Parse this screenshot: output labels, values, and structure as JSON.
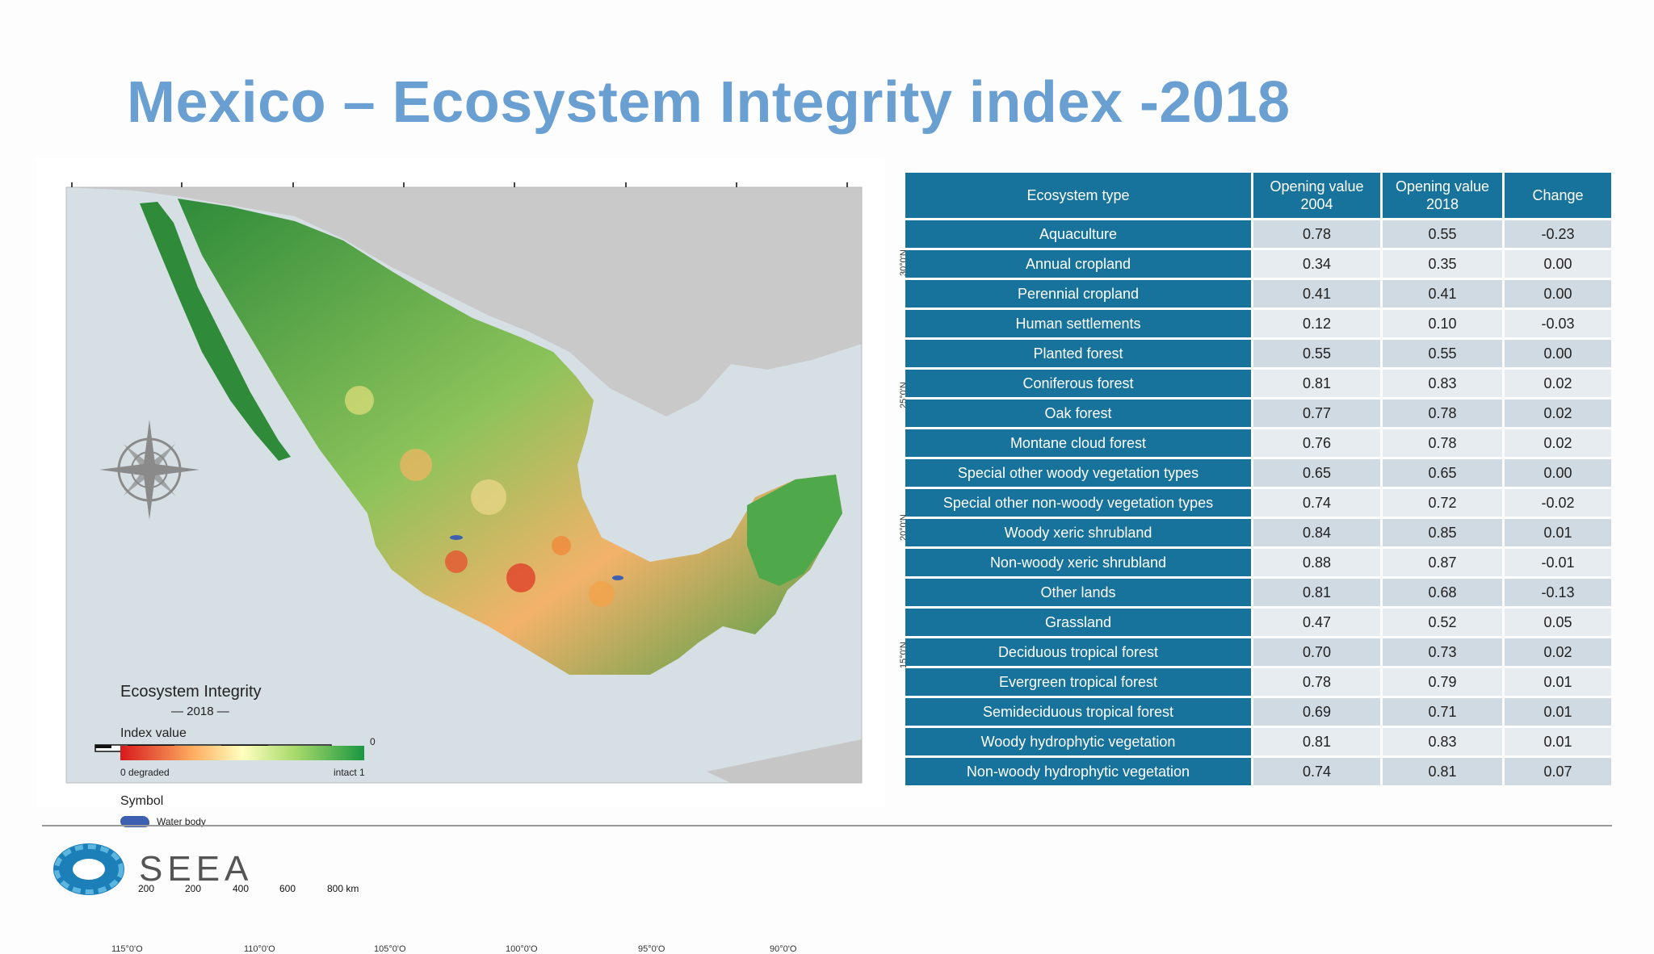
{
  "slide": {
    "title": "Mexico – Ecosystem Integrity index -2018"
  },
  "map": {
    "legend": {
      "title": "Ecosystem Integrity",
      "year": "— 2018 —",
      "index_label": "Index value",
      "zero_mark": "0",
      "low_label": "0 degraded",
      "high_label": "intact 1",
      "symbol_label": "Symbol",
      "water_label": "Water body"
    },
    "scale_bar": [
      "200",
      "200",
      "400",
      "600",
      "800 km"
    ],
    "longitudes": [
      "115°0'O",
      "110°0'O",
      "105°0'O",
      "100°0'O",
      "95°0'O",
      "90°0'O"
    ],
    "latitudes": [
      "30°0'N",
      "25°0'N",
      "20°0'N",
      "15°0'N"
    ],
    "colors": {
      "degraded": "#d7191c",
      "mid": "#ffffbf",
      "intact": "#1a9641",
      "water": "#3d5fb0"
    }
  },
  "table": {
    "headers": [
      "Ecosystem type",
      "Opening value 2004",
      "Opening value 2018",
      "Change"
    ],
    "rows": [
      {
        "type": "Aquaculture",
        "v2004": "0.78",
        "v2018": "0.55",
        "change": "-0.23"
      },
      {
        "type": "Annual cropland",
        "v2004": "0.34",
        "v2018": "0.35",
        "change": "0.00"
      },
      {
        "type": "Perennial cropland",
        "v2004": "0.41",
        "v2018": "0.41",
        "change": "0.00"
      },
      {
        "type": "Human settlements",
        "v2004": "0.12",
        "v2018": "0.10",
        "change": "-0.03"
      },
      {
        "type": "Planted forest",
        "v2004": "0.55",
        "v2018": "0.55",
        "change": "0.00"
      },
      {
        "type": "Coniferous forest",
        "v2004": "0.81",
        "v2018": "0.83",
        "change": "0.02"
      },
      {
        "type": "Oak forest",
        "v2004": "0.77",
        "v2018": "0.78",
        "change": "0.02"
      },
      {
        "type": "Montane cloud forest",
        "v2004": "0.76",
        "v2018": "0.78",
        "change": "0.02"
      },
      {
        "type": "Special other woody vegetation types",
        "v2004": "0.65",
        "v2018": "0.65",
        "change": "0.00"
      },
      {
        "type": "Special other non-woody vegetation types",
        "v2004": "0.74",
        "v2018": "0.72",
        "change": "-0.02"
      },
      {
        "type": "Woody xeric shrubland",
        "v2004": "0.84",
        "v2018": "0.85",
        "change": "0.01"
      },
      {
        "type": "Non-woody xeric shrubland",
        "v2004": "0.88",
        "v2018": "0.87",
        "change": "-0.01"
      },
      {
        "type": "Other lands",
        "v2004": "0.81",
        "v2018": "0.68",
        "change": "-0.13"
      },
      {
        "type": "Grassland",
        "v2004": "0.47",
        "v2018": "0.52",
        "change": "0.05"
      },
      {
        "type": "Deciduous tropical forest",
        "v2004": "0.70",
        "v2018": "0.73",
        "change": "0.02"
      },
      {
        "type": "Evergreen tropical forest",
        "v2004": "0.78",
        "v2018": "0.79",
        "change": "0.01"
      },
      {
        "type": "Semideciduous tropical forest",
        "v2004": "0.69",
        "v2018": "0.71",
        "change": "0.01"
      },
      {
        "type": "Woody hydrophytic vegetation",
        "v2004": "0.81",
        "v2018": "0.83",
        "change": "0.01"
      },
      {
        "type": "Non-woody hydrophytic vegetation",
        "v2004": "0.74",
        "v2018": "0.81",
        "change": "0.07"
      }
    ]
  },
  "footer": {
    "logo_text": "SEEA",
    "logo_icon": "seea-logo-icon"
  }
}
